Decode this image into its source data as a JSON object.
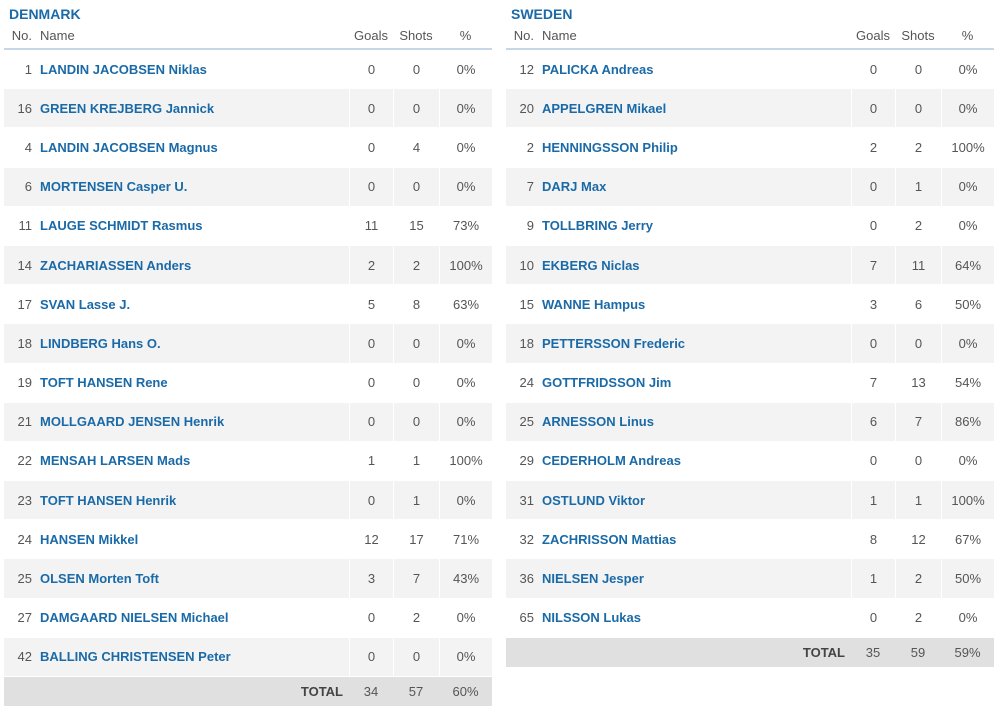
{
  "columns": {
    "no": "No.",
    "name": "Name",
    "goals": "Goals",
    "shots": "Shots",
    "pct": "%"
  },
  "total_label": "TOTAL",
  "colors": {
    "link": "#1a6aa8",
    "stripe": "#f3f3f3",
    "total_bg": "#e0e0e0",
    "header_rule": "#c7d7e8"
  },
  "teams": [
    {
      "name": "DENMARK",
      "players": [
        {
          "no": "1",
          "name": "LANDIN JACOBSEN Niklas",
          "goals": "0",
          "shots": "0",
          "pct": "0%"
        },
        {
          "no": "16",
          "name": "GREEN KREJBERG Jannick",
          "goals": "0",
          "shots": "0",
          "pct": "0%"
        },
        {
          "no": "4",
          "name": "LANDIN JACOBSEN Magnus",
          "goals": "0",
          "shots": "4",
          "pct": "0%"
        },
        {
          "no": "6",
          "name": "MORTENSEN Casper U.",
          "goals": "0",
          "shots": "0",
          "pct": "0%"
        },
        {
          "no": "11",
          "name": "LAUGE SCHMIDT Rasmus",
          "goals": "11",
          "shots": "15",
          "pct": "73%"
        },
        {
          "no": "14",
          "name": "ZACHARIASSEN Anders",
          "goals": "2",
          "shots": "2",
          "pct": "100%"
        },
        {
          "no": "17",
          "name": "SVAN Lasse J.",
          "goals": "5",
          "shots": "8",
          "pct": "63%"
        },
        {
          "no": "18",
          "name": "LINDBERG Hans O.",
          "goals": "0",
          "shots": "0",
          "pct": "0%"
        },
        {
          "no": "19",
          "name": "TOFT HANSEN Rene",
          "goals": "0",
          "shots": "0",
          "pct": "0%"
        },
        {
          "no": "21",
          "name": "MOLLGAARD JENSEN Henrik",
          "goals": "0",
          "shots": "0",
          "pct": "0%"
        },
        {
          "no": "22",
          "name": "MENSAH LARSEN Mads",
          "goals": "1",
          "shots": "1",
          "pct": "100%"
        },
        {
          "no": "23",
          "name": "TOFT HANSEN Henrik",
          "goals": "0",
          "shots": "1",
          "pct": "0%"
        },
        {
          "no": "24",
          "name": "HANSEN Mikkel",
          "goals": "12",
          "shots": "17",
          "pct": "71%"
        },
        {
          "no": "25",
          "name": "OLSEN Morten Toft",
          "goals": "3",
          "shots": "7",
          "pct": "43%"
        },
        {
          "no": "27",
          "name": "DAMGAARD NIELSEN Michael",
          "goals": "0",
          "shots": "2",
          "pct": "0%"
        },
        {
          "no": "42",
          "name": "BALLING CHRISTENSEN Peter",
          "goals": "0",
          "shots": "0",
          "pct": "0%"
        }
      ],
      "total": {
        "goals": "34",
        "shots": "57",
        "pct": "60%"
      }
    },
    {
      "name": "SWEDEN",
      "players": [
        {
          "no": "12",
          "name": "PALICKA Andreas",
          "goals": "0",
          "shots": "0",
          "pct": "0%"
        },
        {
          "no": "20",
          "name": "APPELGREN Mikael",
          "goals": "0",
          "shots": "0",
          "pct": "0%"
        },
        {
          "no": "2",
          "name": "HENNINGSSON Philip",
          "goals": "2",
          "shots": "2",
          "pct": "100%"
        },
        {
          "no": "7",
          "name": "DARJ Max",
          "goals": "0",
          "shots": "1",
          "pct": "0%"
        },
        {
          "no": "9",
          "name": "TOLLBRING Jerry",
          "goals": "0",
          "shots": "2",
          "pct": "0%"
        },
        {
          "no": "10",
          "name": "EKBERG Niclas",
          "goals": "7",
          "shots": "11",
          "pct": "64%"
        },
        {
          "no": "15",
          "name": "WANNE Hampus",
          "goals": "3",
          "shots": "6",
          "pct": "50%"
        },
        {
          "no": "18",
          "name": "PETTERSSON Frederic",
          "goals": "0",
          "shots": "0",
          "pct": "0%"
        },
        {
          "no": "24",
          "name": "GOTTFRIDSSON Jim",
          "goals": "7",
          "shots": "13",
          "pct": "54%"
        },
        {
          "no": "25",
          "name": "ARNESSON Linus",
          "goals": "6",
          "shots": "7",
          "pct": "86%"
        },
        {
          "no": "29",
          "name": "CEDERHOLM Andreas",
          "goals": "0",
          "shots": "0",
          "pct": "0%"
        },
        {
          "no": "31",
          "name": "OSTLUND Viktor",
          "goals": "1",
          "shots": "1",
          "pct": "100%"
        },
        {
          "no": "32",
          "name": "ZACHRISSON Mattias",
          "goals": "8",
          "shots": "12",
          "pct": "67%"
        },
        {
          "no": "36",
          "name": "NIELSEN Jesper",
          "goals": "1",
          "shots": "2",
          "pct": "50%"
        },
        {
          "no": "65",
          "name": "NILSSON Lukas",
          "goals": "0",
          "shots": "2",
          "pct": "0%"
        }
      ],
      "total": {
        "goals": "35",
        "shots": "59",
        "pct": "59%"
      }
    }
  ]
}
